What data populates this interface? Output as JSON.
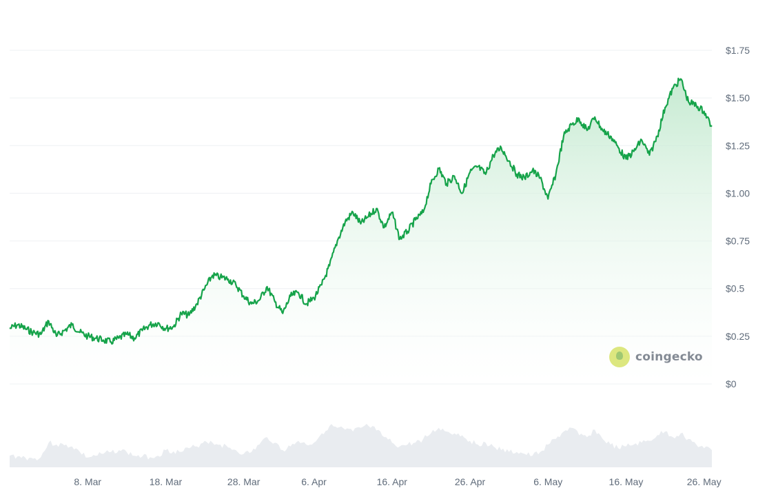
{
  "colors": {
    "line": "#16a34a",
    "area_top": "#bfe8cc",
    "area_bottom": "#ffffff",
    "volume": "#e9ecf0",
    "grid": "#eef0f3",
    "axis_text": "#5f6b7a"
  },
  "watermark": {
    "text": "coingecko",
    "icon": "coingecko-logo-icon"
  },
  "chart_data": {
    "type": "area",
    "title": "",
    "xlabel": "",
    "ylabel": "",
    "grid": true,
    "y_axis_position": "right",
    "ylim": [
      0,
      1.75
    ],
    "ytick_values": [
      0,
      0.25,
      0.5,
      0.75,
      1.0,
      1.25,
      1.5,
      1.75
    ],
    "ytick_labels": [
      "$0",
      "$0.25",
      "$0.5",
      "$0.75",
      "$1.00",
      "$1.25",
      "$1.50",
      "$1.75"
    ],
    "xlim": [
      "2024-02-27",
      "2024-05-27"
    ],
    "xtick_dates": [
      "2024-03-08",
      "2024-03-18",
      "2024-03-28",
      "2024-04-06",
      "2024-04-16",
      "2024-04-26",
      "2024-05-06",
      "2024-05-16",
      "2024-05-26"
    ],
    "xtick_labels": [
      "8. Mar",
      "18. Mar",
      "28. Mar",
      "6. Apr",
      "16. Apr",
      "26. Apr",
      "6. May",
      "16. May",
      "26. May"
    ],
    "series": [
      {
        "kind": "price",
        "x": [
          "2024-02-27",
          "2024-02-28",
          "2024-02-29",
          "2024-03-01",
          "2024-03-02",
          "2024-03-03",
          "2024-03-04",
          "2024-03-05",
          "2024-03-06",
          "2024-03-07",
          "2024-03-08",
          "2024-03-09",
          "2024-03-10",
          "2024-03-11",
          "2024-03-12",
          "2024-03-13",
          "2024-03-14",
          "2024-03-15",
          "2024-03-16",
          "2024-03-17",
          "2024-03-18",
          "2024-03-19",
          "2024-03-20",
          "2024-03-21",
          "2024-03-22",
          "2024-03-23",
          "2024-03-24",
          "2024-03-25",
          "2024-03-26",
          "2024-03-27",
          "2024-03-28",
          "2024-03-29",
          "2024-03-30",
          "2024-03-31",
          "2024-04-01",
          "2024-04-02",
          "2024-04-03",
          "2024-04-04",
          "2024-04-05",
          "2024-04-06",
          "2024-04-07",
          "2024-04-08",
          "2024-04-09",
          "2024-04-10",
          "2024-04-11",
          "2024-04-12",
          "2024-04-13",
          "2024-04-14",
          "2024-04-15",
          "2024-04-16",
          "2024-04-17",
          "2024-04-18",
          "2024-04-19",
          "2024-04-20",
          "2024-04-21",
          "2024-04-22",
          "2024-04-23",
          "2024-04-24",
          "2024-04-25",
          "2024-04-26",
          "2024-04-27",
          "2024-04-28",
          "2024-04-29",
          "2024-04-30",
          "2024-05-01",
          "2024-05-02",
          "2024-05-03",
          "2024-05-04",
          "2024-05-05",
          "2024-05-06",
          "2024-05-07",
          "2024-05-08",
          "2024-05-09",
          "2024-05-10",
          "2024-05-11",
          "2024-05-12",
          "2024-05-13",
          "2024-05-14",
          "2024-05-15",
          "2024-05-16",
          "2024-05-17",
          "2024-05-18",
          "2024-05-19",
          "2024-05-20",
          "2024-05-21",
          "2024-05-22",
          "2024-05-23",
          "2024-05-24",
          "2024-05-25",
          "2024-05-26",
          "2024-05-27"
        ],
        "values": [
          0.29,
          0.31,
          0.29,
          0.27,
          0.26,
          0.33,
          0.25,
          0.28,
          0.31,
          0.27,
          0.25,
          0.24,
          0.23,
          0.22,
          0.24,
          0.26,
          0.24,
          0.28,
          0.31,
          0.32,
          0.29,
          0.3,
          0.37,
          0.36,
          0.42,
          0.5,
          0.57,
          0.56,
          0.55,
          0.52,
          0.46,
          0.42,
          0.44,
          0.51,
          0.43,
          0.37,
          0.46,
          0.48,
          0.42,
          0.45,
          0.52,
          0.62,
          0.75,
          0.85,
          0.9,
          0.84,
          0.88,
          0.92,
          0.82,
          0.9,
          0.76,
          0.8,
          0.86,
          0.9,
          1.05,
          1.13,
          1.05,
          1.09,
          1.0,
          1.11,
          1.14,
          1.1,
          1.2,
          1.24,
          1.17,
          1.1,
          1.08,
          1.12,
          1.08,
          0.97,
          1.1,
          1.3,
          1.36,
          1.39,
          1.33,
          1.4,
          1.33,
          1.3,
          1.24,
          1.18,
          1.22,
          1.28,
          1.2,
          1.3,
          1.45,
          1.55,
          1.6,
          1.48,
          1.46,
          1.43,
          1.35
        ]
      },
      {
        "kind": "volume",
        "relative_values": [
          0.2,
          0.18,
          0.15,
          0.12,
          0.16,
          0.55,
          0.5,
          0.48,
          0.45,
          0.3,
          0.15,
          0.2,
          0.25,
          0.3,
          0.35,
          0.3,
          0.2,
          0.18,
          0.16,
          0.2,
          0.35,
          0.32,
          0.3,
          0.4,
          0.45,
          0.6,
          0.55,
          0.5,
          0.42,
          0.35,
          0.25,
          0.3,
          0.5,
          0.7,
          0.55,
          0.35,
          0.45,
          0.6,
          0.5,
          0.55,
          0.8,
          1.0,
          0.95,
          0.9,
          0.85,
          0.95,
          1.0,
          0.88,
          0.7,
          0.55,
          0.45,
          0.5,
          0.55,
          0.65,
          0.8,
          0.95,
          0.85,
          0.8,
          0.75,
          0.6,
          0.5,
          0.55,
          0.45,
          0.35,
          0.3,
          0.3,
          0.25,
          0.2,
          0.3,
          0.5,
          0.65,
          0.85,
          0.95,
          0.75,
          0.7,
          0.9,
          0.65,
          0.5,
          0.4,
          0.45,
          0.5,
          0.55,
          0.6,
          0.75,
          0.85,
          0.7,
          0.8,
          0.65,
          0.5,
          0.4,
          0.35
        ]
      }
    ]
  }
}
